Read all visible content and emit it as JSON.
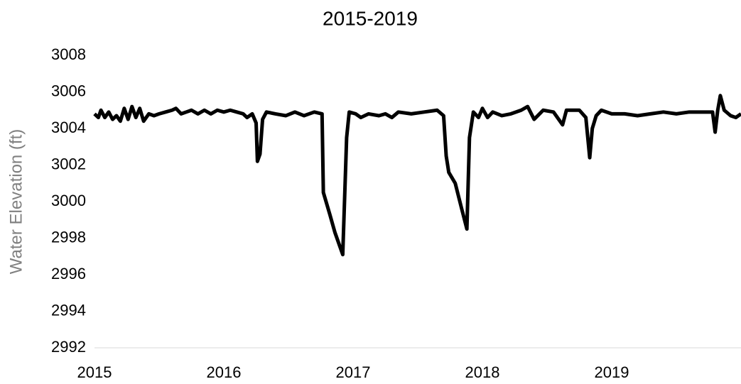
{
  "chart_data": {
    "type": "line",
    "title": "2015-2019",
    "y_label": "Water Elevation (ft)",
    "x": [
      2015.0,
      2015.03,
      2015.05,
      2015.08,
      2015.11,
      2015.14,
      2015.17,
      2015.2,
      2015.23,
      2015.26,
      2015.29,
      2015.32,
      2015.35,
      2015.38,
      2015.42,
      2015.46,
      2015.5,
      2015.55,
      2015.6,
      2015.63,
      2015.67,
      2015.71,
      2015.75,
      2015.8,
      2015.85,
      2015.9,
      2015.95,
      2016.0,
      2016.05,
      2016.1,
      2016.15,
      2016.18,
      2016.22,
      2016.25,
      2016.26,
      2016.28,
      2016.3,
      2016.33,
      2016.4,
      2016.48,
      2016.55,
      2016.62,
      2016.7,
      2016.76,
      2016.77,
      2016.82,
      2016.86,
      2016.9,
      2016.92,
      2016.95,
      2016.97,
      2017.02,
      2017.06,
      2017.12,
      2017.2,
      2017.25,
      2017.3,
      2017.35,
      2017.45,
      2017.55,
      2017.65,
      2017.7,
      2017.72,
      2017.74,
      2017.79,
      2017.84,
      2017.88,
      2017.9,
      2017.93,
      2017.97,
      2018.0,
      2018.04,
      2018.08,
      2018.15,
      2018.22,
      2018.3,
      2018.35,
      2018.4,
      2018.47,
      2018.55,
      2018.62,
      2018.65,
      2018.75,
      2018.8,
      2018.83,
      2018.85,
      2018.88,
      2018.92,
      2019.0,
      2019.1,
      2019.2,
      2019.3,
      2019.4,
      2019.5,
      2019.6,
      2019.7,
      2019.78,
      2019.8,
      2019.82,
      2019.84,
      2019.87,
      2019.92,
      2019.96,
      2020.0
    ],
    "series": [
      {
        "name": "Water Elevation",
        "color": "#000000",
        "values": [
          3004.8,
          3004.6,
          3005.0,
          3004.6,
          3004.9,
          3004.5,
          3004.7,
          3004.4,
          3005.1,
          3004.5,
          3005.2,
          3004.6,
          3005.1,
          3004.4,
          3004.8,
          3004.7,
          3004.8,
          3004.9,
          3005.0,
          3005.1,
          3004.8,
          3004.9,
          3005.0,
          3004.8,
          3005.0,
          3004.8,
          3005.0,
          3004.9,
          3005.0,
          3004.9,
          3004.8,
          3004.6,
          3004.8,
          3004.3,
          3002.2,
          3002.6,
          3004.5,
          3004.9,
          3004.8,
          3004.7,
          3004.9,
          3004.7,
          3004.9,
          3004.8,
          3000.5,
          2999.3,
          2998.3,
          2997.5,
          2997.1,
          3003.5,
          3004.9,
          3004.8,
          3004.6,
          3004.8,
          3004.7,
          3004.8,
          3004.6,
          3004.9,
          3004.8,
          3004.9,
          3005.0,
          3004.7,
          3002.5,
          3001.6,
          3001.0,
          2999.6,
          2998.5,
          3003.5,
          3004.9,
          3004.6,
          3005.1,
          3004.6,
          3004.9,
          3004.7,
          3004.8,
          3005.0,
          3005.2,
          3004.5,
          3005.0,
          3004.9,
          3004.2,
          3005.0,
          3005.0,
          3004.6,
          3002.4,
          3004.0,
          3004.7,
          3005.0,
          3004.8,
          3004.8,
          3004.7,
          3004.8,
          3004.9,
          3004.8,
          3004.9,
          3004.9,
          3004.9,
          3003.8,
          3005.0,
          3005.8,
          3005.0,
          3004.7,
          3004.6,
          3004.8
        ]
      }
    ],
    "xlim": [
      2015,
      2020
    ],
    "xticks": [
      2015,
      2016,
      2017,
      2018,
      2019
    ],
    "ylim": [
      2992,
      3008
    ],
    "yticks": [
      2992,
      2994,
      2996,
      2998,
      3000,
      3002,
      3004,
      3006,
      3008
    ],
    "grid": false
  }
}
